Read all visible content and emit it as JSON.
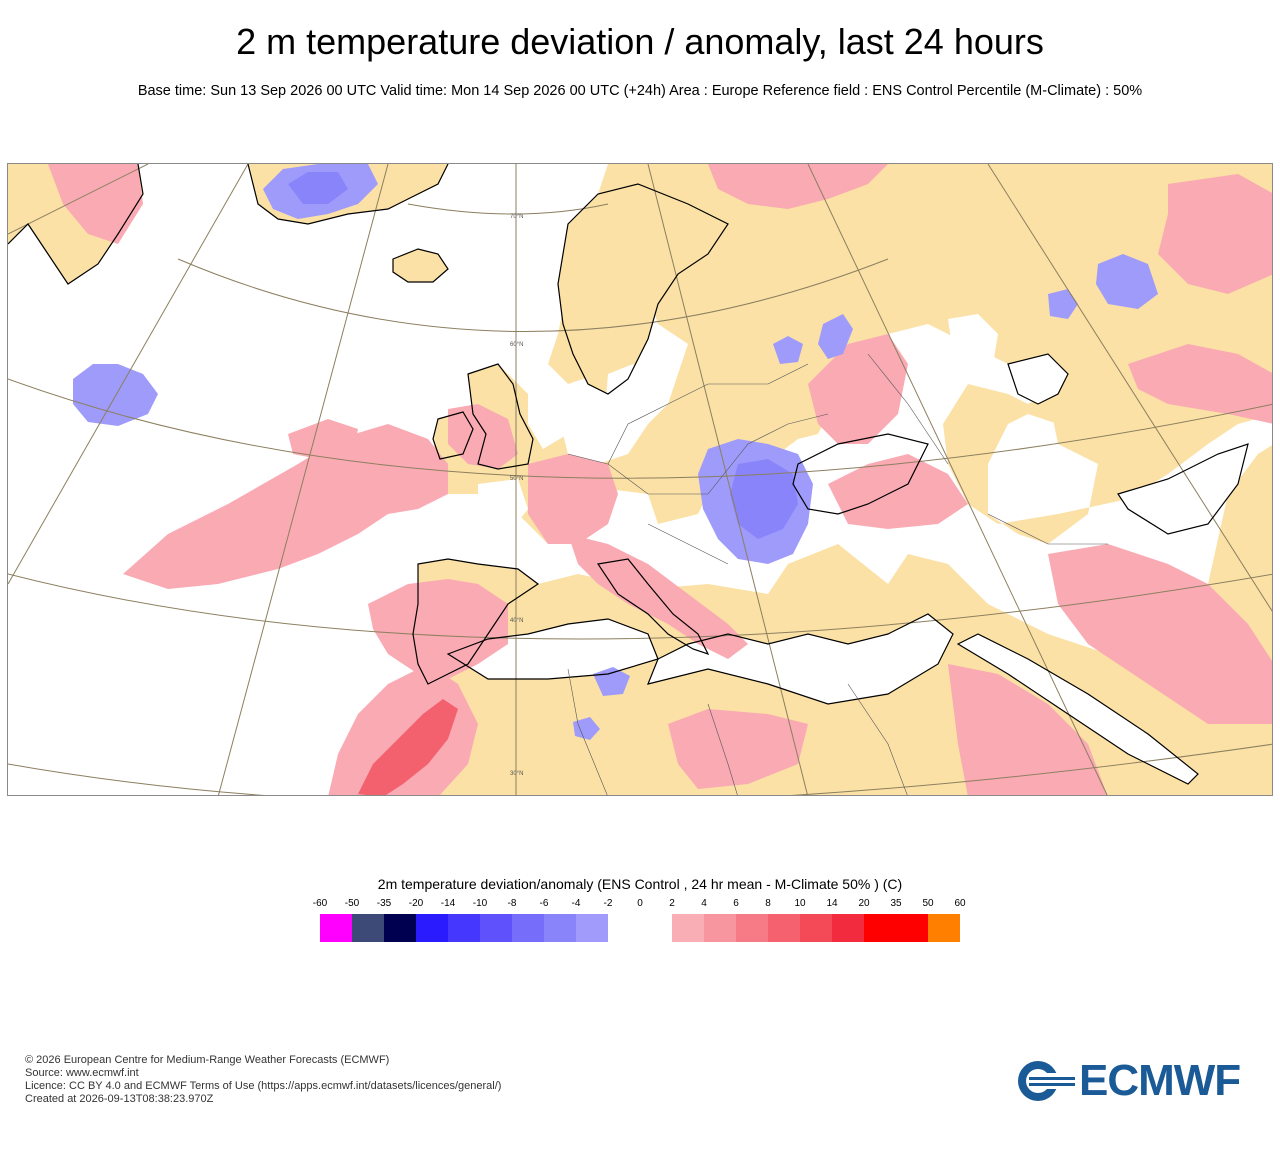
{
  "header": {
    "title": "2 m temperature deviation / anomaly, last 24 hours",
    "subtitle": "Base time: Sun 13 Sep 2026 00 UTC Valid time: Mon 14 Sep 2026 00 UTC (+24h) Area : Europe Reference field : ENS Control Percentile (M-Climate) : 50%"
  },
  "map": {
    "area": "Europe",
    "latitude_labels": [
      "70°N",
      "60°N",
      "50°N",
      "40°N",
      "30°N"
    ],
    "colors": {
      "ocean_and_near_zero": "#ffffff",
      "land_neutral": "#fbe1a6",
      "warm_anomaly": "#f9aab3",
      "strong_warm_anomaly": "#f3616f",
      "cold_anomaly": "#9e9bfb",
      "strong_cold_anomaly": "#6c66f5",
      "coastline": "#000000",
      "graticule": "#8c7f5f"
    }
  },
  "legend": {
    "title": "2m temperature deviation/anomaly (ENS Control , 24 hr mean - M-Climate 50% ) (C)",
    "ticks": [
      "-60",
      "-50",
      "-35",
      "-20",
      "-14",
      "-10",
      "-8",
      "-6",
      "-4",
      "-2",
      "0",
      "2",
      "4",
      "6",
      "8",
      "10",
      "14",
      "20",
      "35",
      "50",
      "60"
    ],
    "bins": [
      {
        "from": -60,
        "to": -50,
        "color": "#ff00ff"
      },
      {
        "from": -50,
        "to": -35,
        "color": "#3d4a78"
      },
      {
        "from": -35,
        "to": -20,
        "color": "#000050"
      },
      {
        "from": -20,
        "to": -14,
        "color": "#2a1bff"
      },
      {
        "from": -14,
        "to": -10,
        "color": "#4637ff"
      },
      {
        "from": -10,
        "to": -8,
        "color": "#5f52fc"
      },
      {
        "from": -8,
        "to": -6,
        "color": "#766dfb"
      },
      {
        "from": -6,
        "to": -4,
        "color": "#8a84fa"
      },
      {
        "from": -4,
        "to": -2,
        "color": "#a19cfb"
      },
      {
        "from": -2,
        "to": 0,
        "color": "#ffffff"
      },
      {
        "from": 0,
        "to": 2,
        "color": "#ffffff"
      },
      {
        "from": 2,
        "to": 4,
        "color": "#f9aeb6"
      },
      {
        "from": 4,
        "to": 6,
        "color": "#f8969f"
      },
      {
        "from": 6,
        "to": 8,
        "color": "#f77b86"
      },
      {
        "from": 8,
        "to": 10,
        "color": "#f5616e"
      },
      {
        "from": 10,
        "to": 14,
        "color": "#f44a58"
      },
      {
        "from": 14,
        "to": 20,
        "color": "#f22c3e"
      },
      {
        "from": 20,
        "to": 35,
        "color": "#ff0000"
      },
      {
        "from": 35,
        "to": 50,
        "color": "#ff0000"
      },
      {
        "from": 50,
        "to": 60,
        "color": "#ff7f00"
      }
    ]
  },
  "footer": {
    "copyright": "© 2026 European Centre for Medium-Range Weather Forecasts (ECMWF)",
    "source": "Source: www.ecmwf.int",
    "licence": "Licence: CC BY 4.0 and ECMWF Terms of Use (https://apps.ecmwf.int/datasets/licences/general/)",
    "created": "Created at 2026-09-13T08:38:23.970Z"
  },
  "logo": {
    "text": "ECMWF",
    "icon": "ecmwf-logo-icon",
    "color": "#1a5a96"
  }
}
